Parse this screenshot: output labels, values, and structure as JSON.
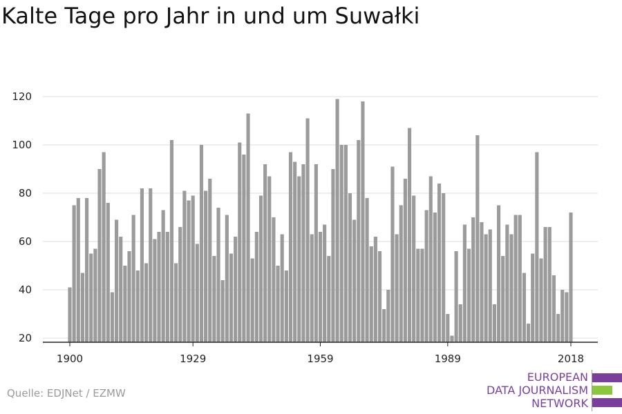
{
  "title": "Kalte Tage pro Jahr in und um Suwałki",
  "source": "Quelle: EDJNet / EZMW",
  "logo": {
    "line1": "EUROPEAN",
    "line2": "DATA JOURNALISM",
    "line3": "NETWORK",
    "colors": {
      "purple": "#7a3f9d",
      "green": "#8cc63f"
    }
  },
  "colors": {
    "bar": "#9b9b9b",
    "grid": "#dddddd",
    "axis": "#222222"
  },
  "chart_data": {
    "type": "bar",
    "title": "Kalte Tage pro Jahr in und um Suwałki",
    "xlabel": "",
    "ylabel": "",
    "x_start": 1900,
    "x_end": 2018,
    "x_ticks": [
      1900,
      1929,
      1959,
      1989,
      2018
    ],
    "y_ticks": [
      20,
      40,
      60,
      80,
      100,
      120
    ],
    "ylim": [
      20,
      120
    ],
    "grid": true,
    "legend": "none",
    "categories": [
      1900,
      1901,
      1902,
      1903,
      1904,
      1905,
      1906,
      1907,
      1908,
      1909,
      1910,
      1911,
      1912,
      1913,
      1914,
      1915,
      1916,
      1917,
      1918,
      1919,
      1920,
      1921,
      1922,
      1923,
      1924,
      1925,
      1926,
      1927,
      1928,
      1929,
      1930,
      1931,
      1932,
      1933,
      1934,
      1935,
      1936,
      1937,
      1938,
      1939,
      1940,
      1941,
      1942,
      1943,
      1944,
      1945,
      1946,
      1947,
      1948,
      1949,
      1950,
      1951,
      1952,
      1953,
      1954,
      1955,
      1956,
      1957,
      1958,
      1959,
      1960,
      1961,
      1962,
      1963,
      1964,
      1965,
      1966,
      1967,
      1968,
      1969,
      1970,
      1971,
      1972,
      1973,
      1974,
      1975,
      1976,
      1977,
      1978,
      1979,
      1980,
      1981,
      1982,
      1983,
      1984,
      1985,
      1986,
      1987,
      1988,
      1989,
      1990,
      1991,
      1992,
      1993,
      1994,
      1995,
      1996,
      1997,
      1998,
      1999,
      2000,
      2001,
      2002,
      2003,
      2004,
      2005,
      2006,
      2007,
      2008,
      2009,
      2010,
      2011,
      2012,
      2013,
      2014,
      2015,
      2016,
      2017,
      2018
    ],
    "values": [
      41,
      75,
      78,
      47,
      78,
      55,
      57,
      90,
      97,
      76,
      39,
      69,
      62,
      50,
      56,
      71,
      48,
      82,
      51,
      82,
      61,
      64,
      73,
      64,
      102,
      51,
      66,
      81,
      77,
      79,
      59,
      100,
      81,
      86,
      54,
      74,
      44,
      71,
      55,
      62,
      101,
      96,
      113,
      53,
      64,
      79,
      92,
      87,
      70,
      50,
      63,
      48,
      97,
      93,
      87,
      92,
      111,
      63,
      92,
      64,
      67,
      54,
      90,
      119,
      100,
      100,
      80,
      69,
      102,
      118,
      78,
      58,
      62,
      56,
      32,
      40,
      91,
      63,
      75,
      86,
      107,
      79,
      57,
      57,
      73,
      87,
      72,
      84,
      80,
      30,
      21,
      56,
      34,
      67,
      57,
      70,
      104,
      68,
      63,
      65,
      34,
      75,
      54,
      67,
      63,
      71,
      71,
      47,
      26,
      55,
      97,
      53,
      66,
      66,
      46,
      30,
      40,
      39,
      72
    ]
  }
}
